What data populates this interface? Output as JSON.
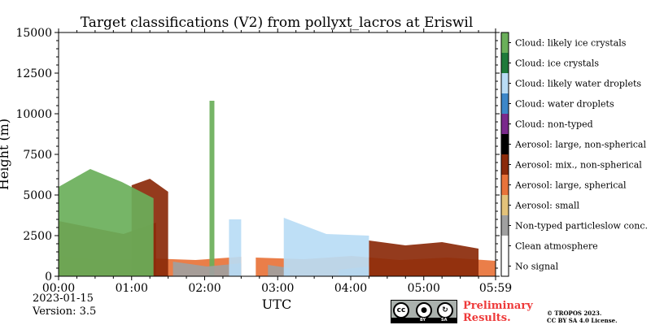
{
  "chart_data": {
    "type": "heatmap",
    "title": "Target classifications (V2) from pollyxt_lacros at Eriswil",
    "xlabel": "UTC",
    "ylabel": "Height (m)",
    "ylim": [
      0,
      15000
    ],
    "xlim_minutes": [
      0,
      359
    ],
    "y_ticks": [
      0,
      2500,
      5000,
      7500,
      10000,
      12500,
      15000
    ],
    "x_ticks": [
      {
        "minute": 0,
        "label": "00:00"
      },
      {
        "minute": 60,
        "label": "01:00"
      },
      {
        "minute": 120,
        "label": "02:00"
      },
      {
        "minute": 180,
        "label": "03:00"
      },
      {
        "minute": 240,
        "label": "04:00"
      },
      {
        "minute": 300,
        "label": "05:00"
      },
      {
        "minute": 359,
        "label": "05:59"
      }
    ],
    "legend": [
      {
        "label": "Cloud: likely ice crystals",
        "color": "#6aaf5a"
      },
      {
        "label": "Cloud: ice crystals",
        "color": "#1f7a3a"
      },
      {
        "label": "Cloud: likely water droplets",
        "color": "#b9dcf5"
      },
      {
        "label": "Cloud: water droplets",
        "color": "#3d87c8"
      },
      {
        "label": "Cloud: non-typed",
        "color": "#7a2a8c"
      },
      {
        "label": "Aerosol: large, non-spherical",
        "color": "#000000"
      },
      {
        "label": "Aerosol: mix., non-spherical",
        "color": "#8b2a0a"
      },
      {
        "label": "Aerosol: large, spherical",
        "color": "#e8733a"
      },
      {
        "label": "Aerosol: small",
        "color": "#e3c27a"
      },
      {
        "label": "Non-typed particleslow conc.",
        "color": "#a0a0a0"
      },
      {
        "label": "Clean atmosphere",
        "color": "#ffffff"
      },
      {
        "label": "No signal",
        "color": "#ffffff"
      }
    ],
    "layers": [
      {
        "class": "Aerosol: large, spherical",
        "segments": [
          {
            "x": [
              0,
              150
            ],
            "top": [
              1250,
              950,
              1100,
              1000,
              1200
            ]
          },
          {
            "x": [
              162,
              359
            ],
            "top": [
              1150,
              1050,
              1250,
              1000,
              1150,
              950
            ]
          }
        ]
      },
      {
        "class": "Aerosol: mix., non-spherical",
        "segments": [
          {
            "x": [
              0,
              80
            ],
            "top": [
              3400,
              3000,
              2600,
              3300
            ]
          },
          {
            "x": [
              60,
              90
            ],
            "top": [
              5600,
              6000,
              5200
            ]
          },
          {
            "x": [
              255,
              345
            ],
            "top": [
              2200,
              1900,
              2100,
              1700
            ]
          }
        ]
      },
      {
        "class": "Cloud: likely ice crystals",
        "segments": [
          {
            "x": [
              0,
              78
            ],
            "top": [
              5500,
              6600,
              5800,
              4800
            ]
          },
          {
            "x": [
              124,
              128
            ],
            "top": [
              10800
            ]
          }
        ]
      },
      {
        "class": "Non-typed particleslow conc.",
        "segments": [
          {
            "x": [
              94,
              150
            ],
            "top": [
              900,
              600,
              800
            ]
          },
          {
            "x": [
              172,
              190
            ],
            "top": [
              700,
              500
            ]
          },
          {
            "x": [
              230,
              255
            ],
            "top": [
              400,
              600
            ]
          }
        ]
      },
      {
        "class": "Cloud: likely water droplets",
        "segments": [
          {
            "x": [
              140,
              150
            ],
            "top": [
              3500
            ]
          },
          {
            "x": [
              185,
              255
            ],
            "top": [
              3600,
              2600,
              2500
            ]
          }
        ]
      }
    ]
  },
  "footer": {
    "date": "2023-01-15",
    "version": "Version: 3.5",
    "preliminary_line1": "Preliminary",
    "preliminary_line2": "Results.",
    "copyright_line1": "© TROPOS 2023.",
    "copyright_line2": "CC BY SA 4.0 License.",
    "cc_badge": {
      "cc": "cc",
      "by": "BY",
      "sa": "SA"
    }
  }
}
